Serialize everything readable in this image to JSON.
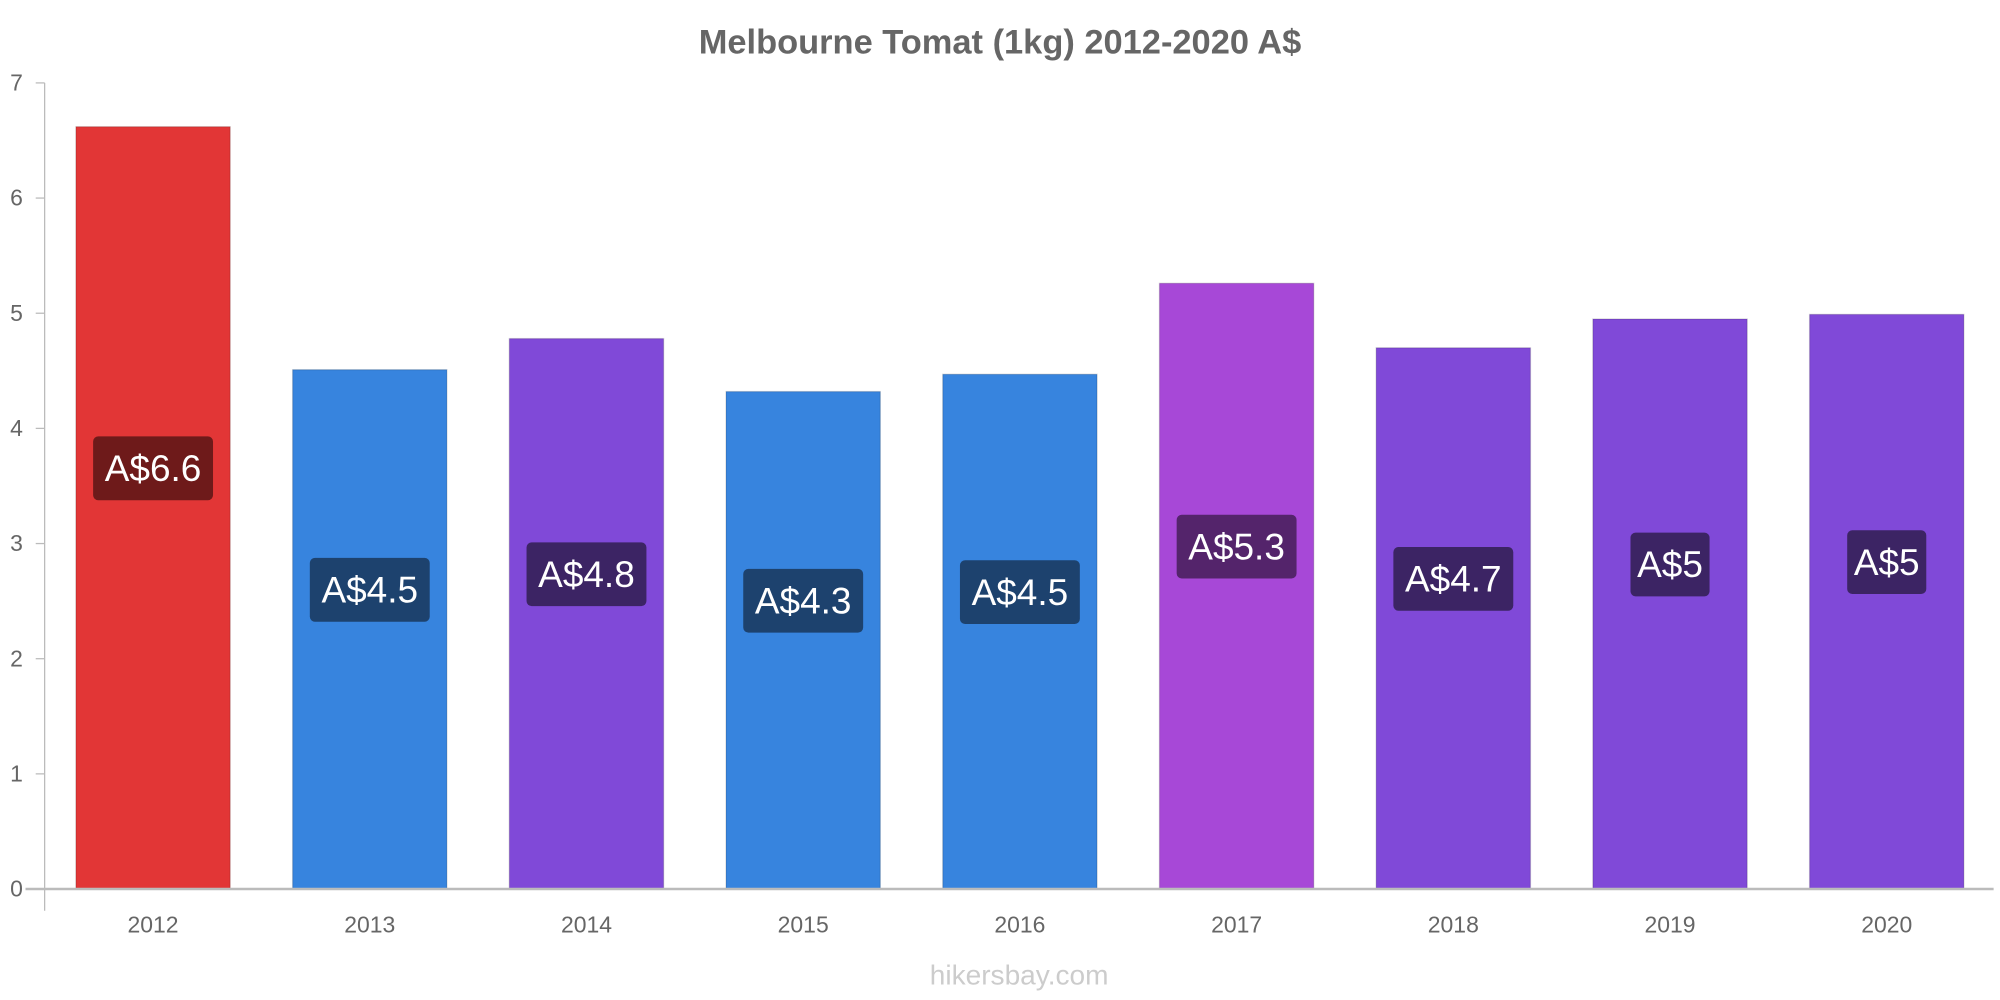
{
  "chart_data": {
    "type": "bar",
    "title": "Melbourne Tomat (1kg) 2012-2020 A$",
    "xlabel": "",
    "ylabel": "",
    "ylim": [
      0,
      7
    ],
    "yticks": [
      "0",
      "1",
      "2",
      "3",
      "4",
      "5",
      "6",
      "7"
    ],
    "categories": [
      "2012",
      "2013",
      "2014",
      "2015",
      "2016",
      "2017",
      "2018",
      "2019",
      "2020"
    ],
    "values": [
      6.62,
      4.51,
      4.78,
      4.32,
      4.47,
      5.26,
      4.7,
      4.95,
      4.99
    ],
    "data_labels": [
      "A$6.6",
      "A$4.5",
      "A$4.8",
      "A$4.3",
      "A$4.5",
      "A$5.3",
      "A$4.7",
      "A$5",
      "A$5"
    ],
    "bar_colors": [
      "#e23636",
      "#3784de",
      "#8049d8",
      "#3784de",
      "#3784de",
      "#a748d7",
      "#8049d8",
      "#8049d8",
      "#8049d8"
    ],
    "label_colors": [
      "#6e1a1a",
      "#1d426e",
      "#3c2464",
      "#1d426e",
      "#1d426e",
      "#54246b",
      "#3c2464",
      "#3c2464",
      "#3c2464"
    ],
    "grid": false,
    "watermark": "hikersbay.com"
  }
}
